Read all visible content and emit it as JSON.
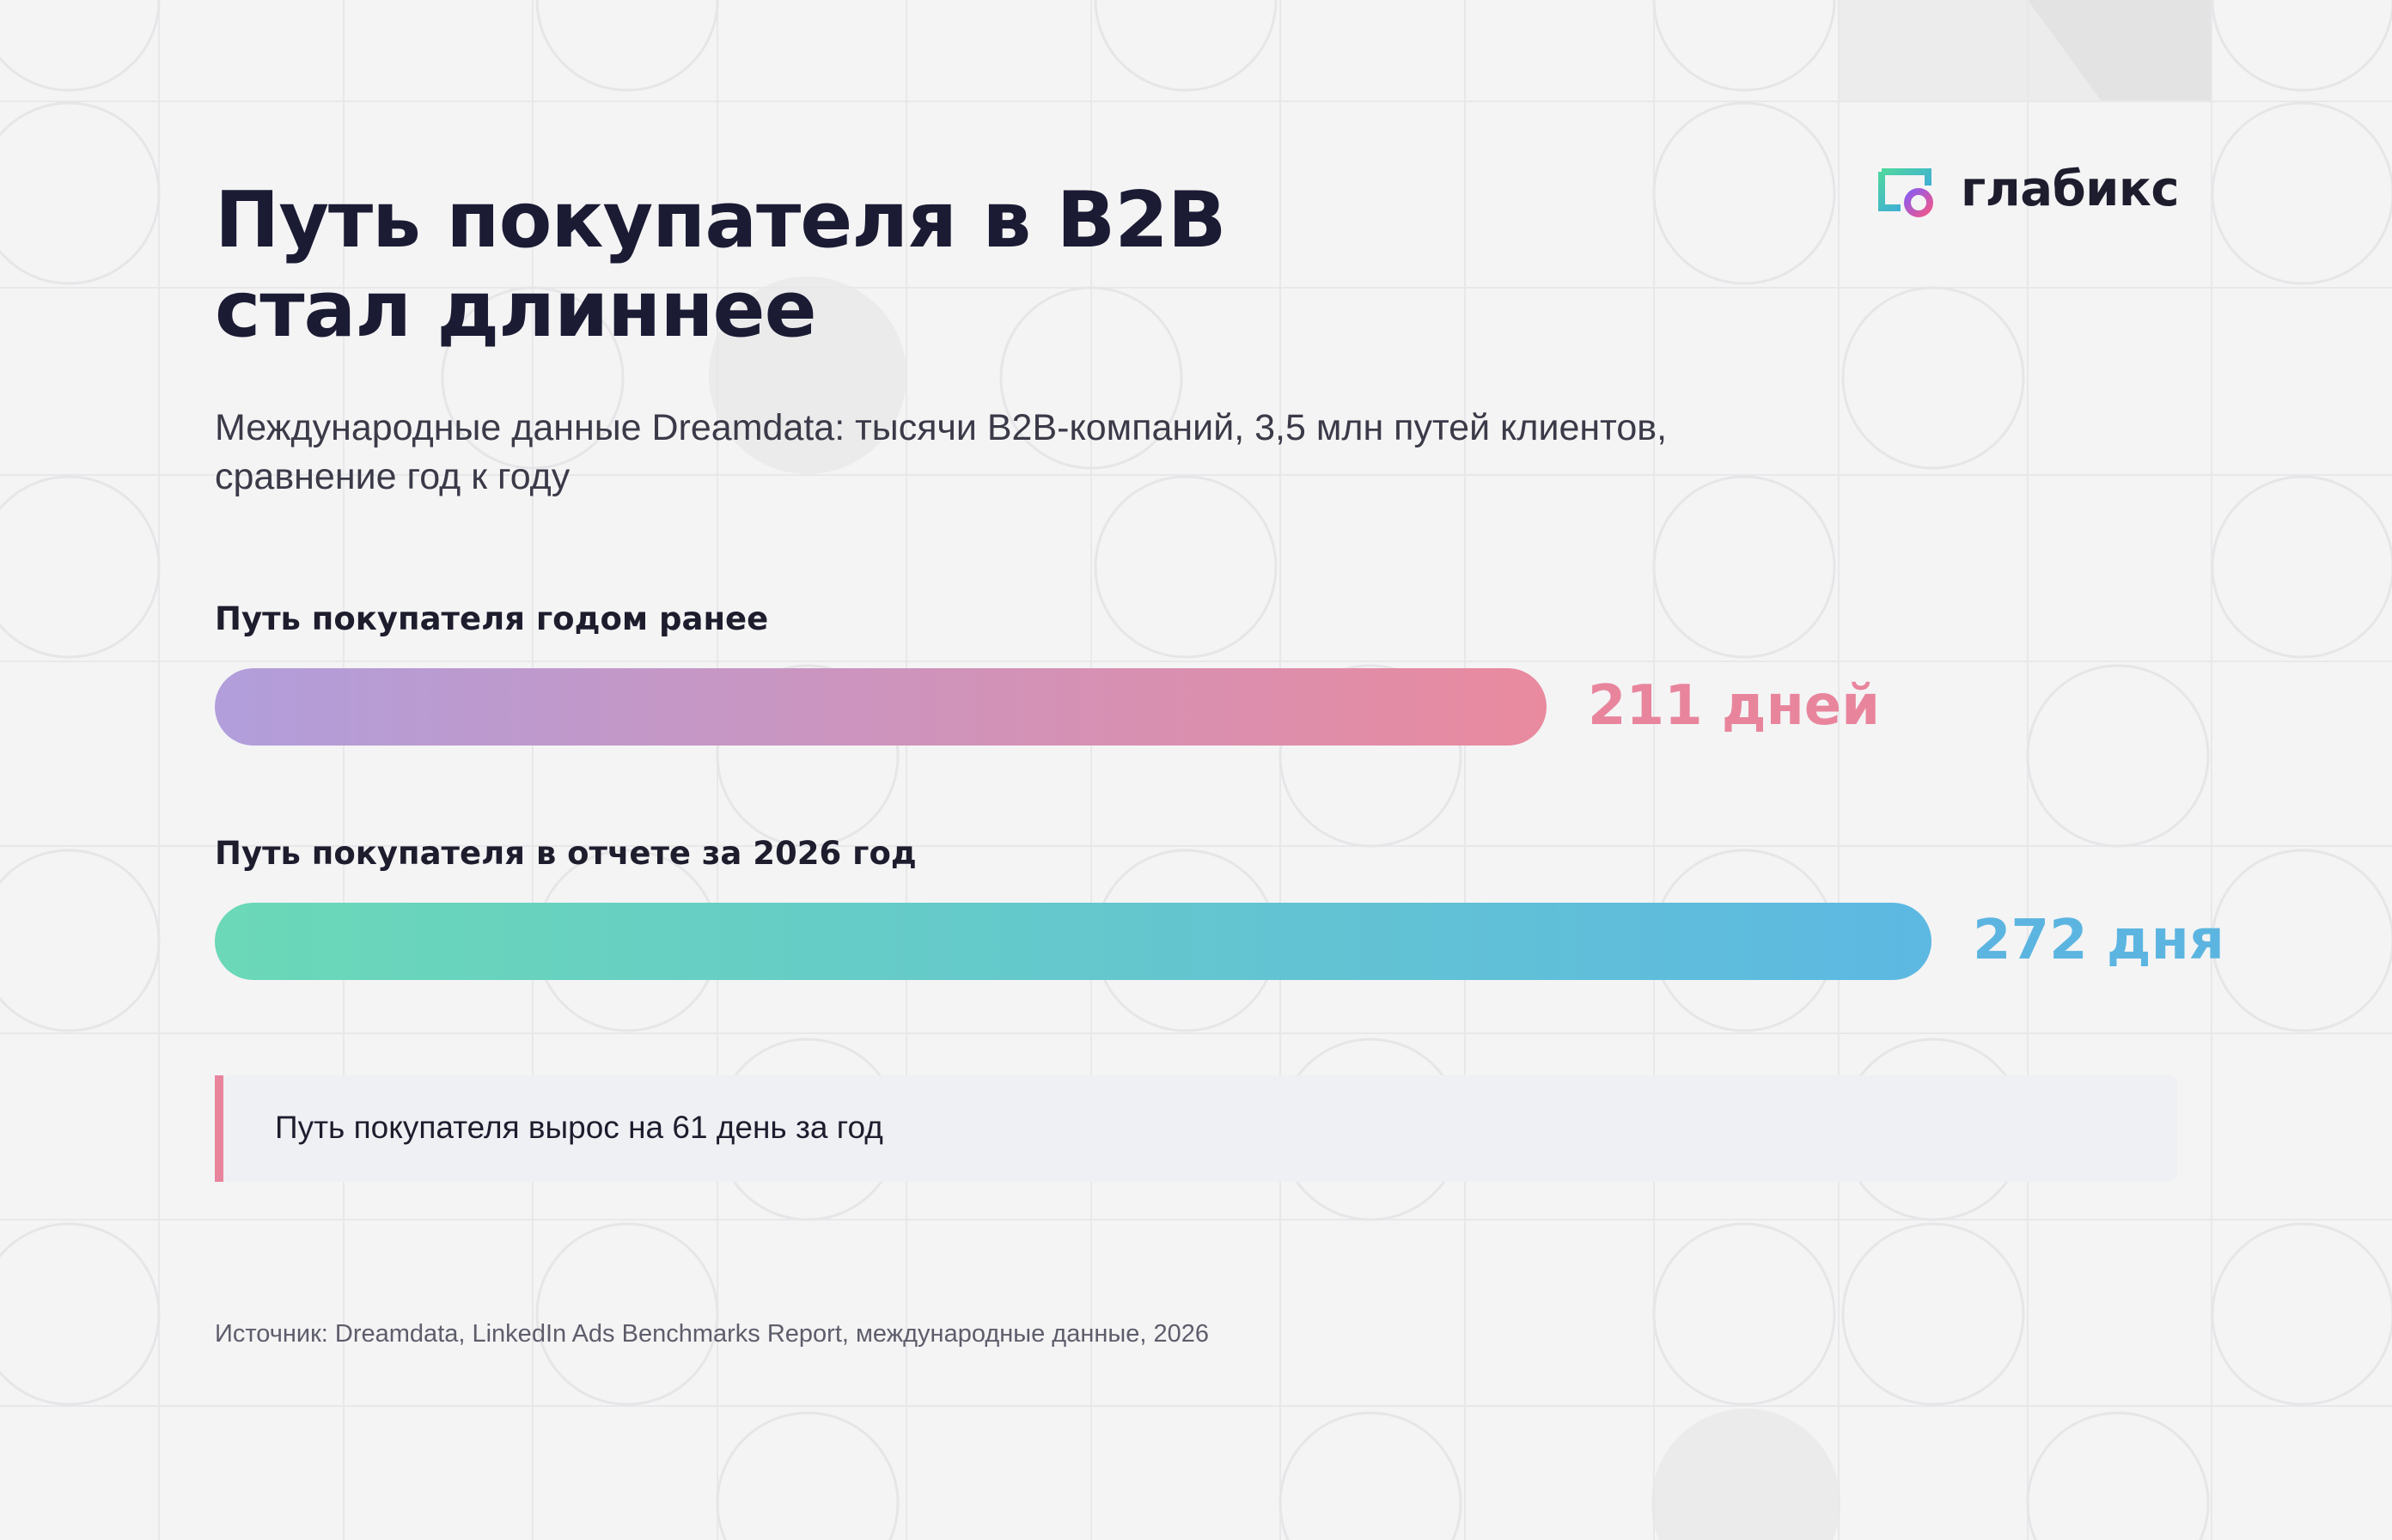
{
  "brand": {
    "name": "глабикс",
    "logo_icon": "glabix-logo-icon"
  },
  "title_lines": [
    "Путь покупателя в B2B",
    "стал длиннее"
  ],
  "subtitle": "Международные данные Dreamdata: тысячи B2B-компаний, 3,5 млн путей клиентов, сравнение год к году",
  "chart_data": {
    "type": "bar",
    "orientation": "horizontal",
    "categories": [
      "Путь покупателя годом ранее",
      "Путь покупателя в отчете за 2026 год"
    ],
    "values": [
      211,
      272
    ],
    "value_labels": [
      "211 дней",
      "272 дня"
    ],
    "colors": {
      "bar_1": [
        "#b19edb",
        "#e98a9f"
      ],
      "bar_2": [
        "#6bd8b7",
        "#5db8e2"
      ],
      "value_1": "#e8859d",
      "value_2": "#5cb5e0"
    },
    "legend": "none",
    "grid": false
  },
  "callout": {
    "text": "Путь покупателя вырос на 61 день за год",
    "accent_color": "#e8859d"
  },
  "source": "Источник: Dreamdata, LinkedIn Ads Benchmarks Report, международные данные, 2026"
}
